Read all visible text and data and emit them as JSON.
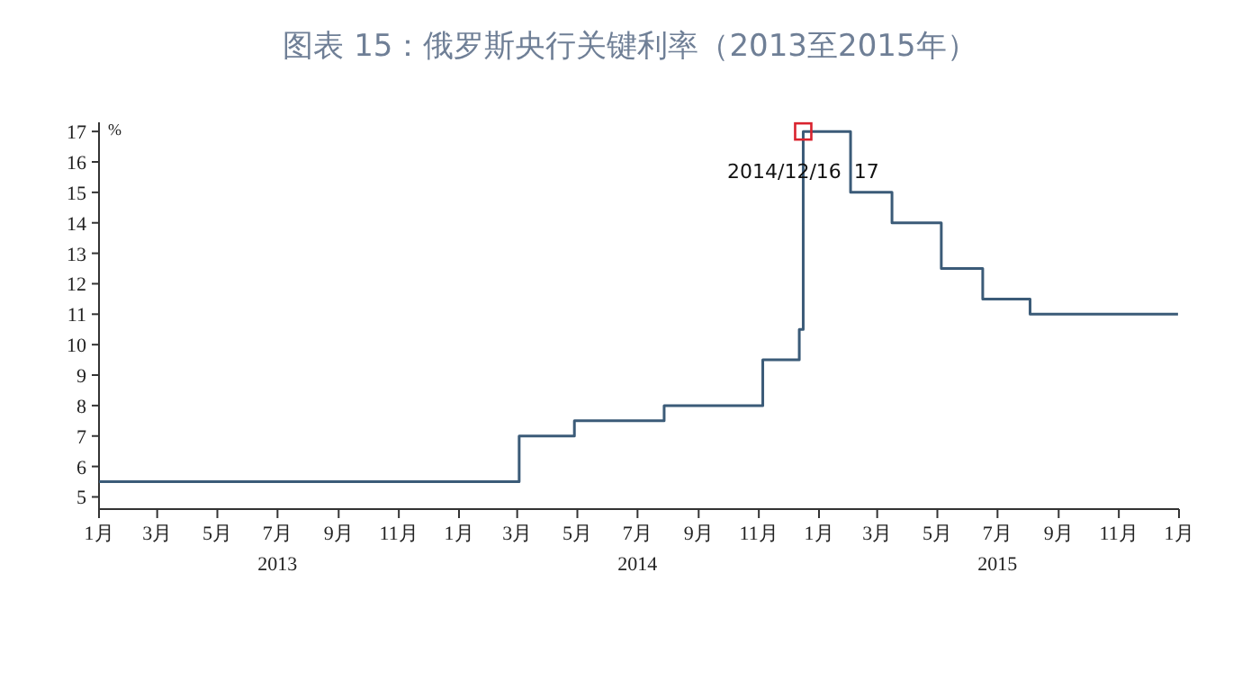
{
  "chart_data": {
    "type": "step",
    "title": "图表 15：俄罗斯央行关键利率（2013至2015年）",
    "ylabel": "%",
    "series": [
      {
        "color": "#3b5b78",
        "x": [
          "2013-01-01",
          "2014-03-03",
          "2014-04-28",
          "2014-07-28",
          "2014-11-05",
          "2014-12-12",
          "2014-12-16",
          "2015-02-02",
          "2015-03-16",
          "2015-05-05",
          "2015-06-16",
          "2015-08-03",
          "2015-12-31"
        ],
        "values": [
          5.5,
          7,
          7.5,
          8,
          9.5,
          10.5,
          17,
          15,
          14,
          12.5,
          11.5,
          11,
          11
        ]
      }
    ],
    "annotations": [
      {
        "text": "2014/12/16  17",
        "x": "2014-12-16",
        "y": 17
      }
    ],
    "xlim": [
      "2013-01-01",
      "2016-01-01"
    ],
    "xticks": [
      {
        "value": "2013-01-01",
        "label": "1月"
      },
      {
        "value": "2013-03-01",
        "label": "3月"
      },
      {
        "value": "2013-05-01",
        "label": "5月"
      },
      {
        "value": "2013-07-01",
        "label": "7月\n2013"
      },
      {
        "value": "2013-09-01",
        "label": "9月"
      },
      {
        "value": "2013-11-01",
        "label": "11月"
      },
      {
        "value": "2014-01-01",
        "label": "1月"
      },
      {
        "value": "2014-03-01",
        "label": "3月"
      },
      {
        "value": "2014-05-01",
        "label": "5月"
      },
      {
        "value": "2014-07-01",
        "label": "7月\n2014"
      },
      {
        "value": "2014-09-01",
        "label": "9月"
      },
      {
        "value": "2014-11-01",
        "label": "11月"
      },
      {
        "value": "2015-01-01",
        "label": "1月"
      },
      {
        "value": "2015-03-01",
        "label": "3月"
      },
      {
        "value": "2015-05-01",
        "label": "5月"
      },
      {
        "value": "2015-07-01",
        "label": "7月\n2015"
      },
      {
        "value": "2015-09-01",
        "label": "9月"
      },
      {
        "value": "2015-11-01",
        "label": "11月"
      },
      {
        "value": "2016-01-01",
        "label": "1月"
      }
    ],
    "ylim": [
      4.6,
      17.3
    ],
    "yticks": [
      5,
      6,
      7,
      8,
      9,
      10,
      11,
      12,
      13,
      14,
      15,
      16,
      17
    ],
    "grid": false,
    "line_style": "solid",
    "marker": "none"
  }
}
